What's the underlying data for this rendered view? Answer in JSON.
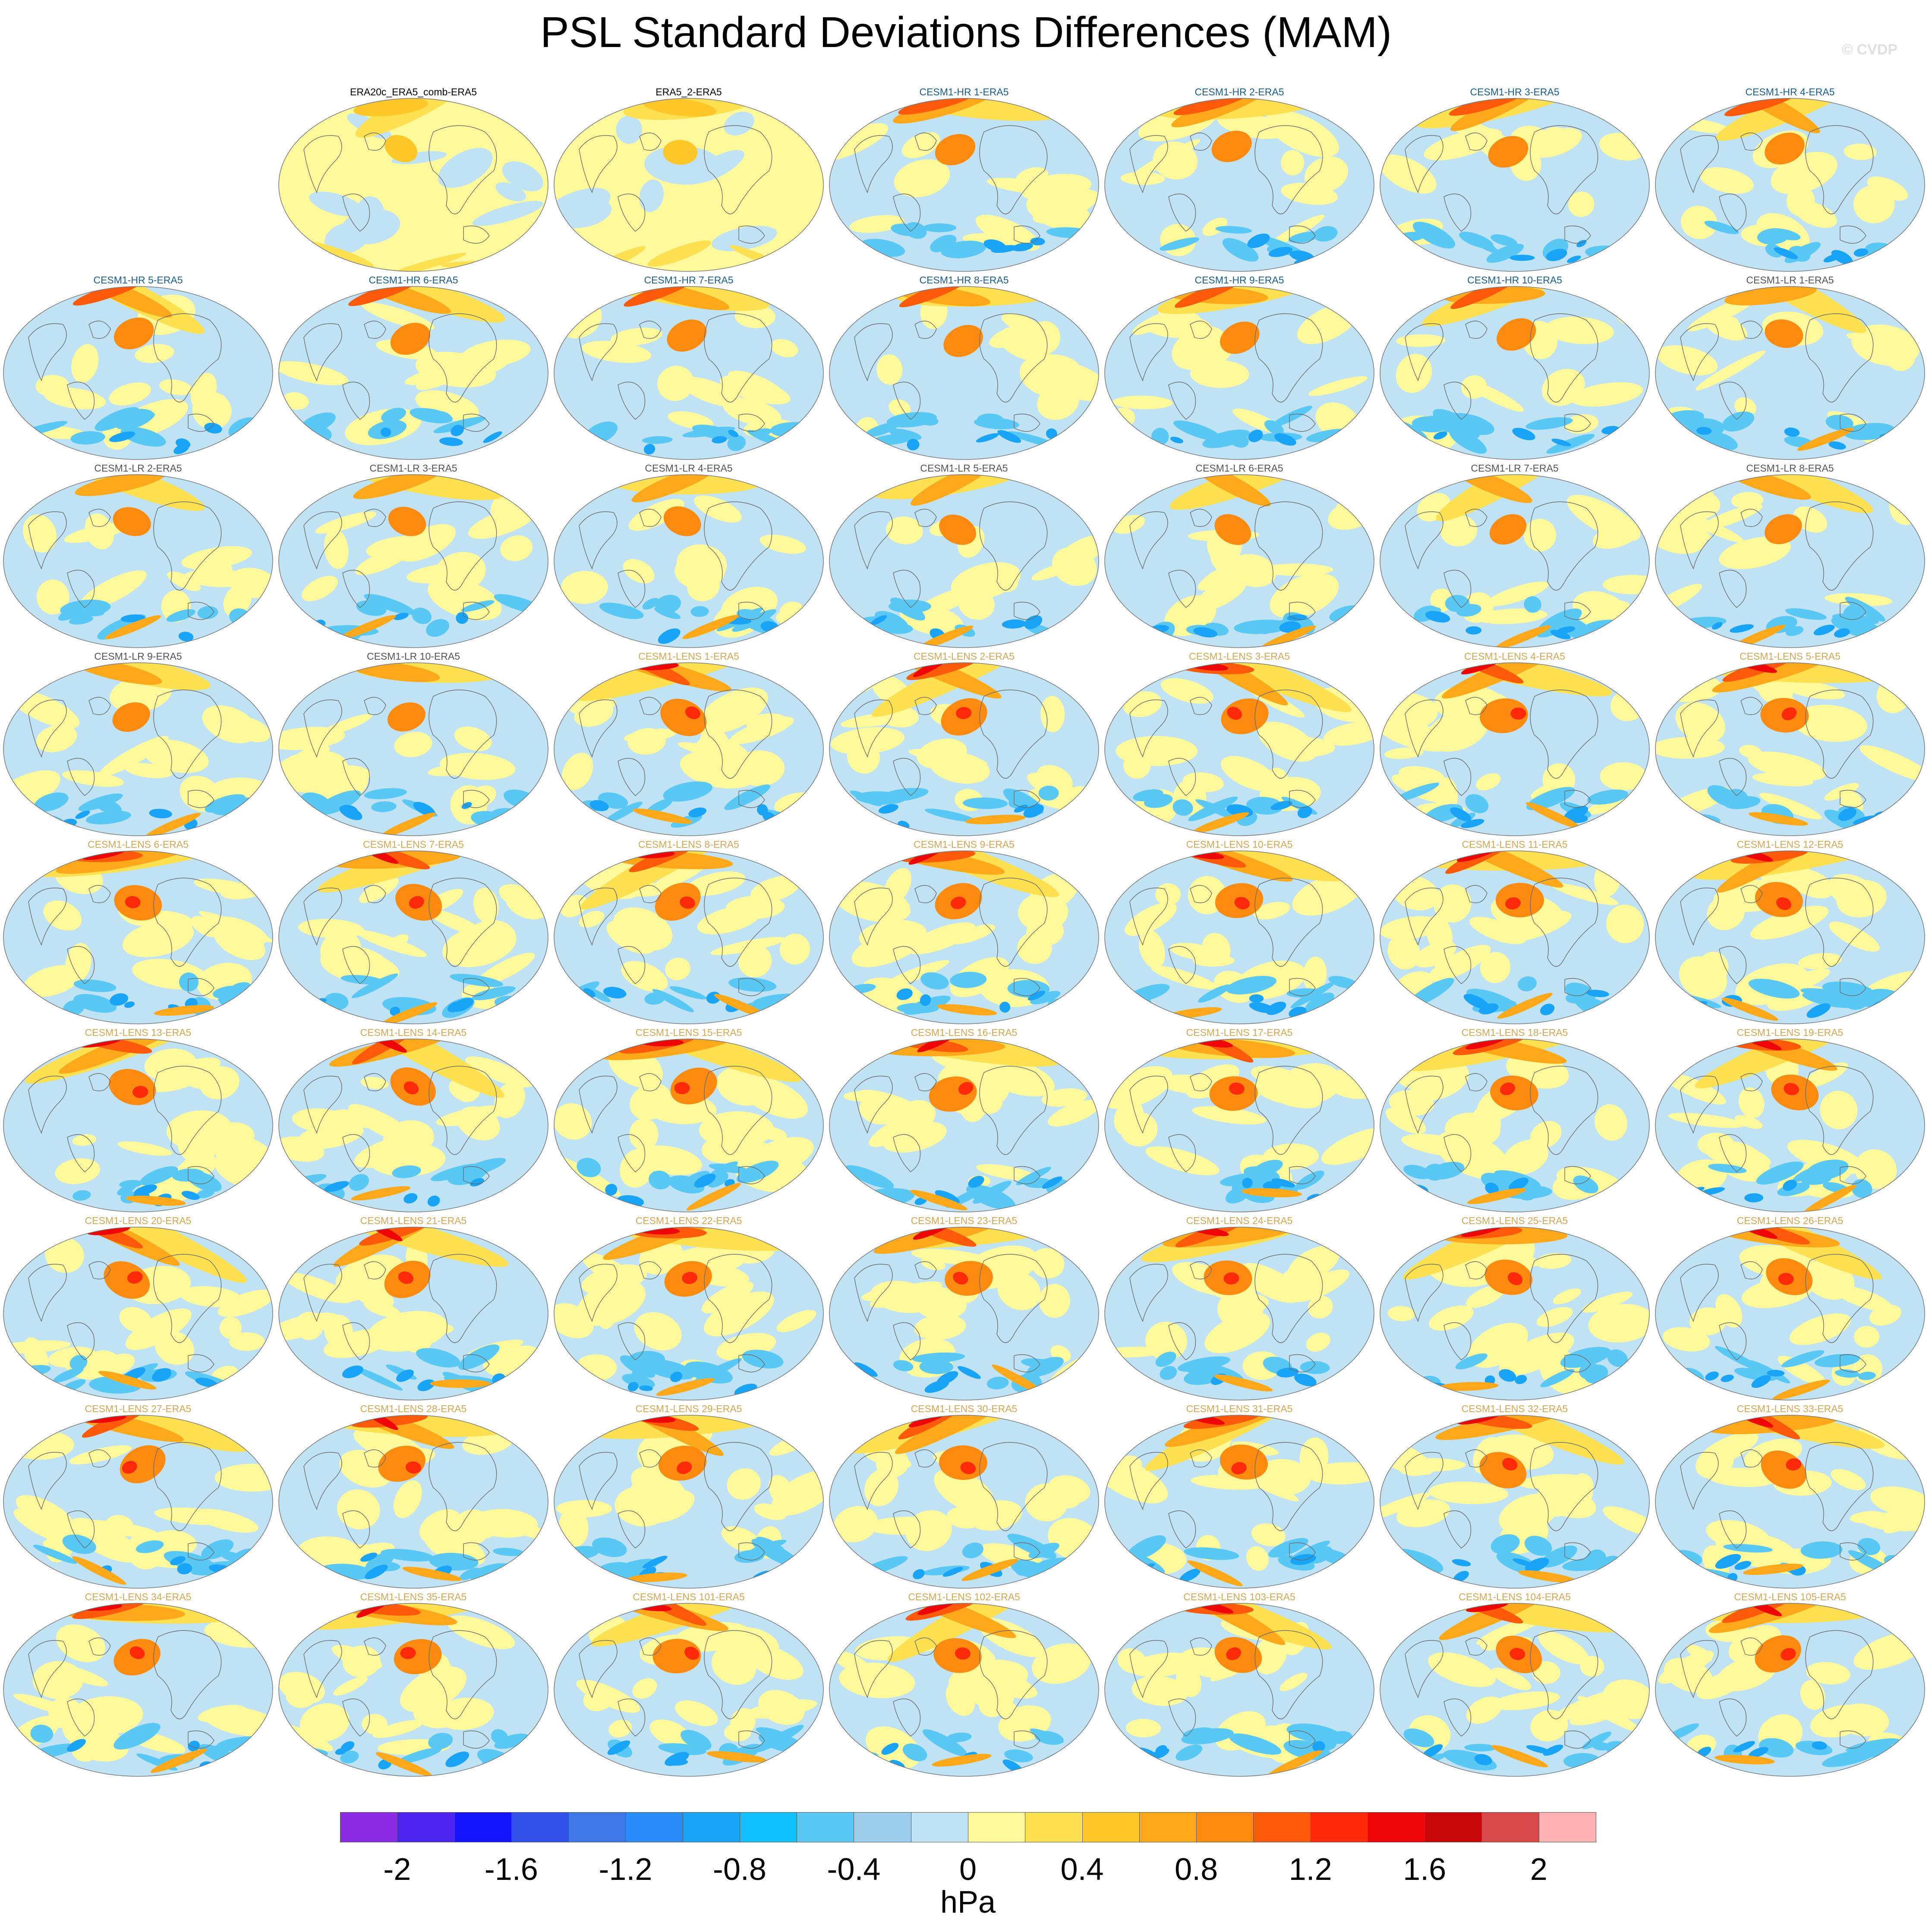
{
  "title": "PSL Standard Deviations Differences (MAM)",
  "watermark": "© CVDP",
  "panels": [
    {
      "label": "ERA20c_ERA5_comb-ERA5",
      "group": "obs"
    },
    {
      "label": "ERA5_2-ERA5",
      "group": "obs"
    },
    {
      "label": "CESM1-HR 1-ERA5",
      "group": "hr"
    },
    {
      "label": "CESM1-HR 2-ERA5",
      "group": "hr"
    },
    {
      "label": "CESM1-HR 3-ERA5",
      "group": "hr"
    },
    {
      "label": "CESM1-HR 4-ERA5",
      "group": "hr"
    },
    {
      "label": "CESM1-HR 5-ERA5",
      "group": "hr"
    },
    {
      "label": "CESM1-HR 6-ERA5",
      "group": "hr"
    },
    {
      "label": "CESM1-HR 7-ERA5",
      "group": "hr"
    },
    {
      "label": "CESM1-HR 8-ERA5",
      "group": "hr"
    },
    {
      "label": "CESM1-HR 9-ERA5",
      "group": "hr"
    },
    {
      "label": "CESM1-HR 10-ERA5",
      "group": "hr"
    },
    {
      "label": "CESM1-LR 1-ERA5",
      "group": "lr"
    },
    {
      "label": "CESM1-LR 2-ERA5",
      "group": "lr"
    },
    {
      "label": "CESM1-LR 3-ERA5",
      "group": "lr"
    },
    {
      "label": "CESM1-LR 4-ERA5",
      "group": "lr"
    },
    {
      "label": "CESM1-LR 5-ERA5",
      "group": "lr"
    },
    {
      "label": "CESM1-LR 6-ERA5",
      "group": "lr"
    },
    {
      "label": "CESM1-LR 7-ERA5",
      "group": "lr"
    },
    {
      "label": "CESM1-LR 8-ERA5",
      "group": "lr"
    },
    {
      "label": "CESM1-LR 9-ERA5",
      "group": "lr"
    },
    {
      "label": "CESM1-LR 10-ERA5",
      "group": "lr"
    },
    {
      "label": "CESM1-LENS 1-ERA5",
      "group": "lens"
    },
    {
      "label": "CESM1-LENS 2-ERA5",
      "group": "lens"
    },
    {
      "label": "CESM1-LENS 3-ERA5",
      "group": "lens"
    },
    {
      "label": "CESM1-LENS 4-ERA5",
      "group": "lens"
    },
    {
      "label": "CESM1-LENS 5-ERA5",
      "group": "lens"
    },
    {
      "label": "CESM1-LENS 6-ERA5",
      "group": "lens"
    },
    {
      "label": "CESM1-LENS 7-ERA5",
      "group": "lens"
    },
    {
      "label": "CESM1-LENS 8-ERA5",
      "group": "lens"
    },
    {
      "label": "CESM1-LENS 9-ERA5",
      "group": "lens"
    },
    {
      "label": "CESM1-LENS 10-ERA5",
      "group": "lens"
    },
    {
      "label": "CESM1-LENS 11-ERA5",
      "group": "lens"
    },
    {
      "label": "CESM1-LENS 12-ERA5",
      "group": "lens"
    },
    {
      "label": "CESM1-LENS 13-ERA5",
      "group": "lens"
    },
    {
      "label": "CESM1-LENS 14-ERA5",
      "group": "lens"
    },
    {
      "label": "CESM1-LENS 15-ERA5",
      "group": "lens"
    },
    {
      "label": "CESM1-LENS 16-ERA5",
      "group": "lens"
    },
    {
      "label": "CESM1-LENS 17-ERA5",
      "group": "lens"
    },
    {
      "label": "CESM1-LENS 18-ERA5",
      "group": "lens"
    },
    {
      "label": "CESM1-LENS 19-ERA5",
      "group": "lens"
    },
    {
      "label": "CESM1-LENS 20-ERA5",
      "group": "lens"
    },
    {
      "label": "CESM1-LENS 21-ERA5",
      "group": "lens"
    },
    {
      "label": "CESM1-LENS 22-ERA5",
      "group": "lens"
    },
    {
      "label": "CESM1-LENS 23-ERA5",
      "group": "lens"
    },
    {
      "label": "CESM1-LENS 24-ERA5",
      "group": "lens"
    },
    {
      "label": "CESM1-LENS 25-ERA5",
      "group": "lens"
    },
    {
      "label": "CESM1-LENS 26-ERA5",
      "group": "lens"
    },
    {
      "label": "CESM1-LENS 27-ERA5",
      "group": "lens"
    },
    {
      "label": "CESM1-LENS 28-ERA5",
      "group": "lens"
    },
    {
      "label": "CESM1-LENS 29-ERA5",
      "group": "lens"
    },
    {
      "label": "CESM1-LENS 30-ERA5",
      "group": "lens"
    },
    {
      "label": "CESM1-LENS 31-ERA5",
      "group": "lens"
    },
    {
      "label": "CESM1-LENS 32-ERA5",
      "group": "lens"
    },
    {
      "label": "CESM1-LENS 33-ERA5",
      "group": "lens"
    },
    {
      "label": "CESM1-LENS 34-ERA5",
      "group": "lens"
    },
    {
      "label": "CESM1-LENS 35-ERA5",
      "group": "lens"
    },
    {
      "label": "CESM1-LENS 101-ERA5",
      "group": "lens"
    },
    {
      "label": "CESM1-LENS 102-ERA5",
      "group": "lens"
    },
    {
      "label": "CESM1-LENS 103-ERA5",
      "group": "lens"
    },
    {
      "label": "CESM1-LENS 104-ERA5",
      "group": "lens"
    },
    {
      "label": "CESM1-LENS 105-ERA5",
      "group": "lens"
    }
  ],
  "group_label_colors": {
    "obs": "#000000",
    "hr": "#1b5e8c",
    "lr": "#555555",
    "lens": "#d4a857"
  },
  "colorbar": {
    "units": "hPa",
    "colors": [
      "#8a2be2",
      "#4b24f0",
      "#1515ff",
      "#3050e8",
      "#3e78e6",
      "#2a8cf8",
      "#1aa4f8",
      "#10c0ff",
      "#5ac8f5",
      "#9ccdec",
      "#bfe2f5",
      "#fff99b",
      "#ffe050",
      "#ffc828",
      "#ffa81a",
      "#ff8a10",
      "#ff5a0a",
      "#ff2a0a",
      "#ee0606",
      "#c80808",
      "#d84848",
      "#ffb0b0"
    ],
    "tick_labels": [
      "-2",
      "-1.6",
      "-1.2",
      "-0.8",
      "-0.4",
      "0",
      "0.4",
      "0.8",
      "1.2",
      "1.6",
      "2"
    ]
  }
}
